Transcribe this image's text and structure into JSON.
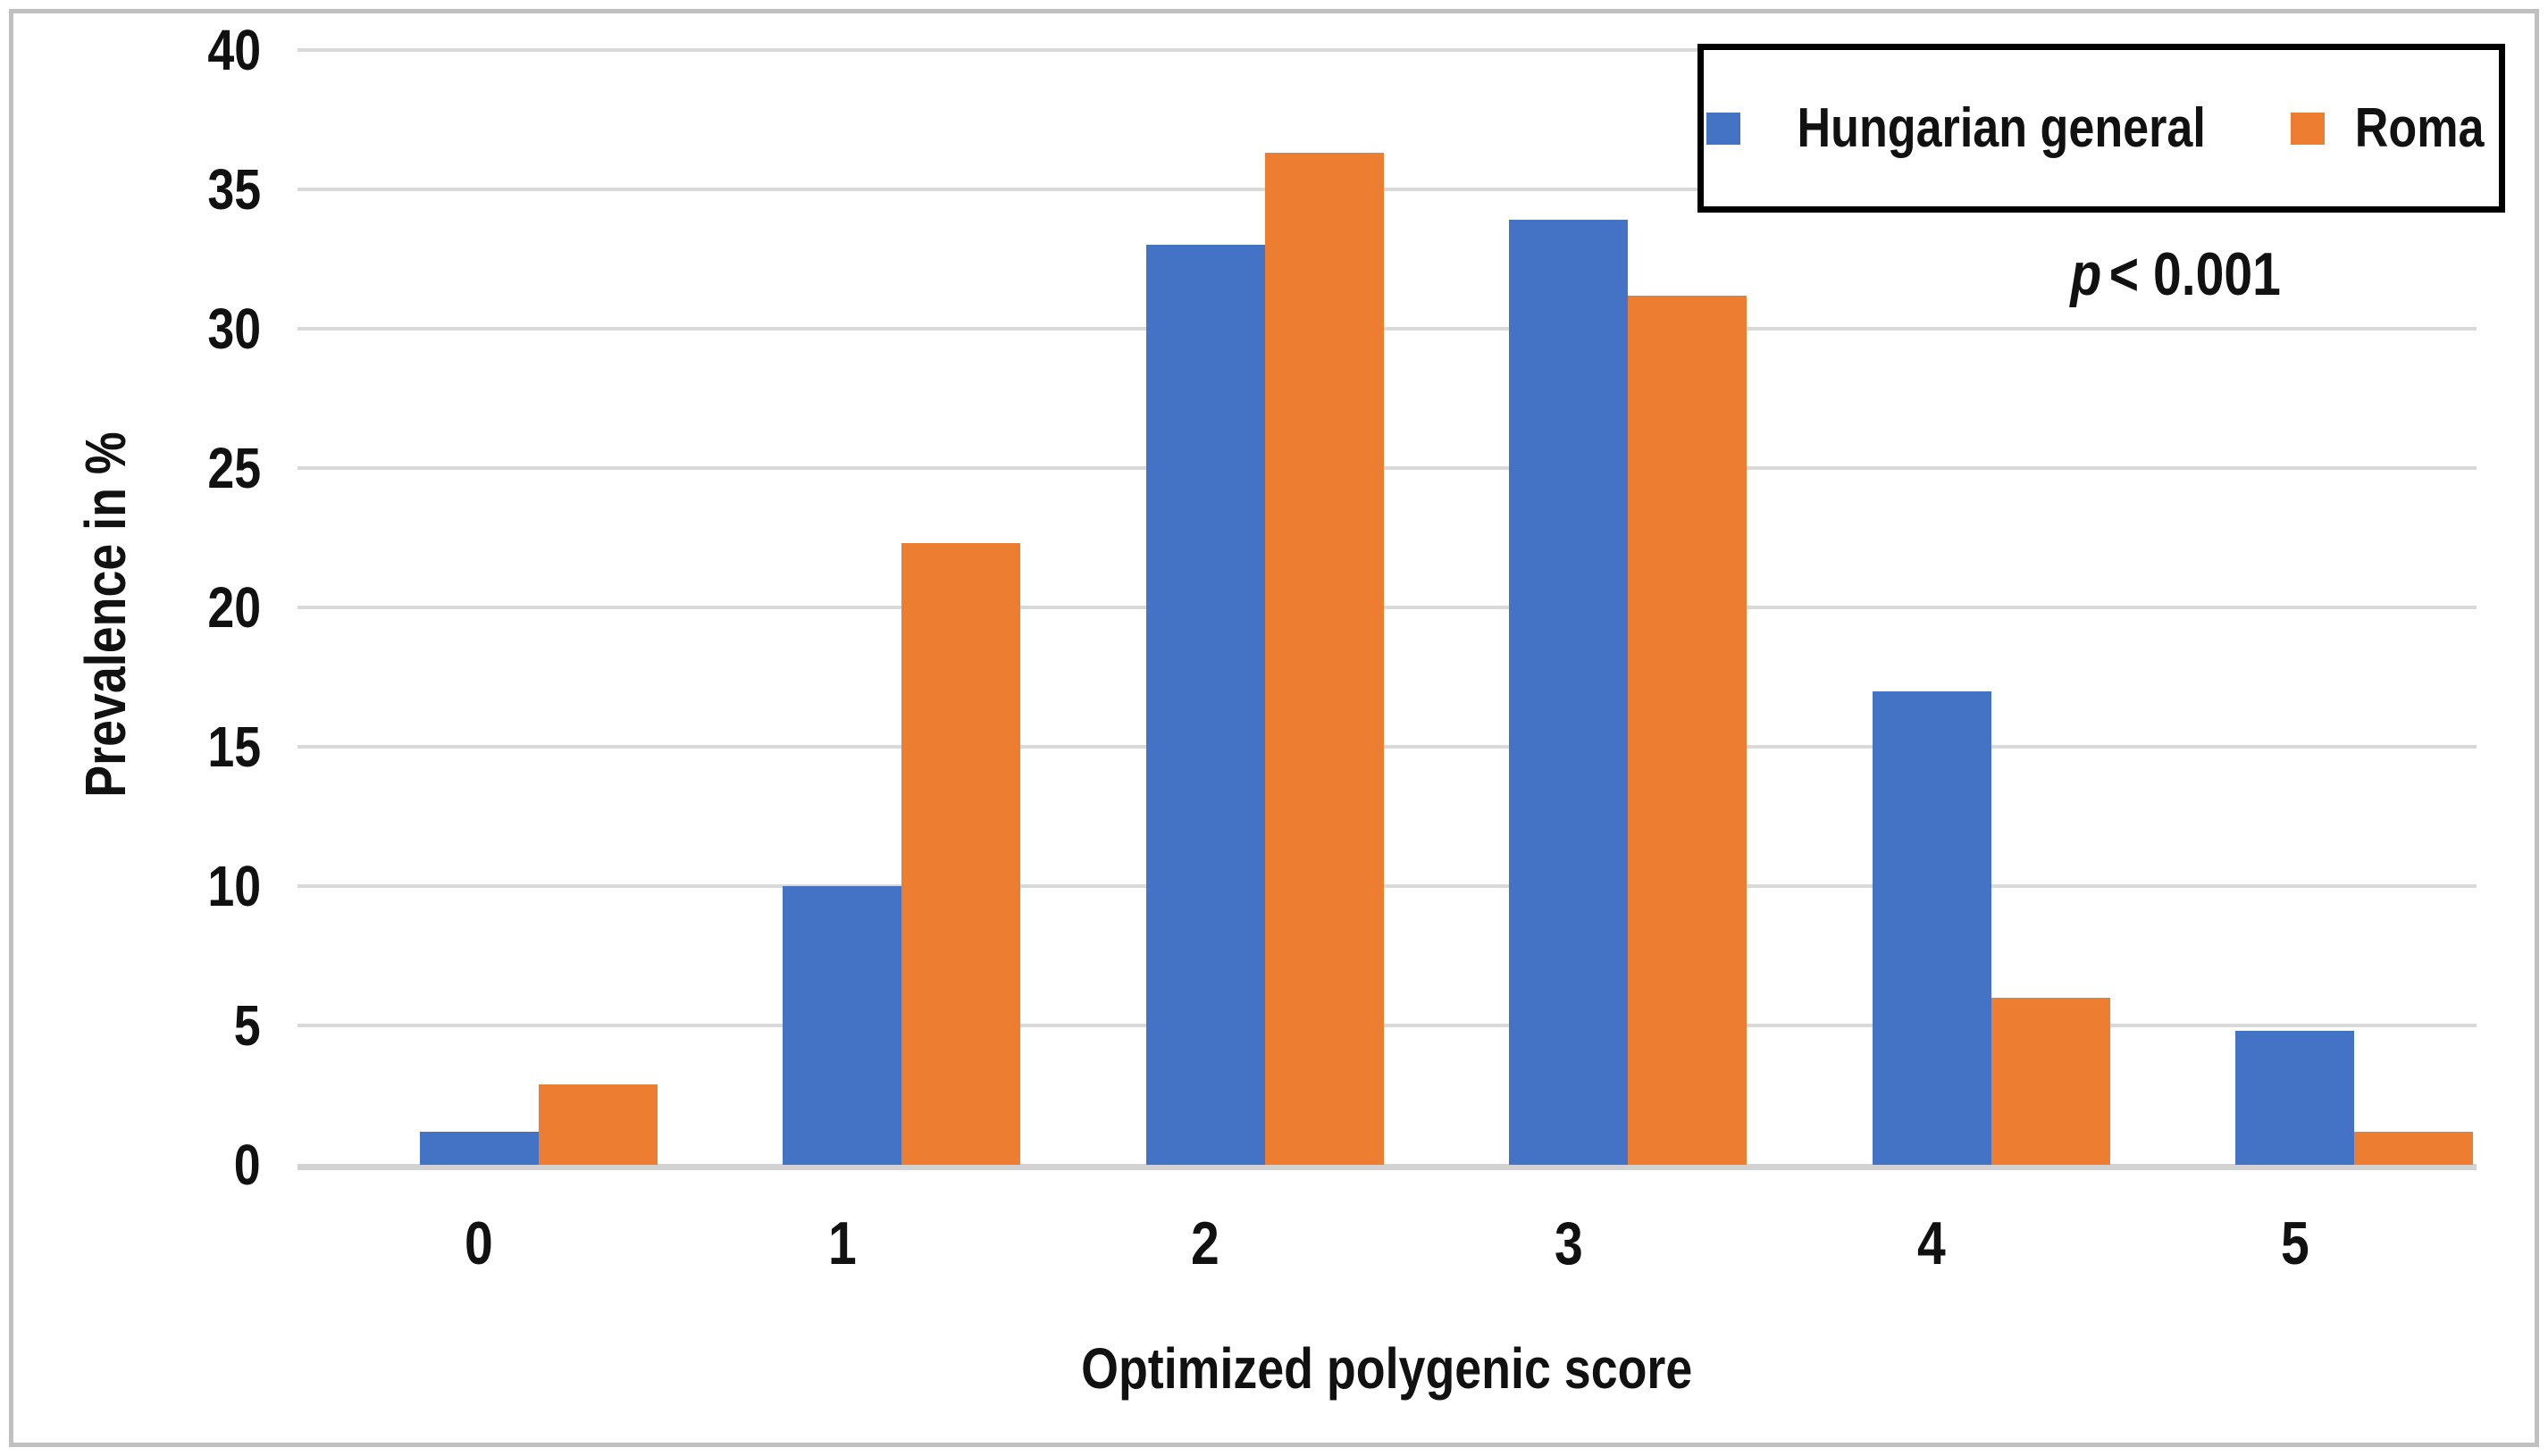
{
  "figure": {
    "background": "#ffffff",
    "border_color": "#c0c0c0"
  },
  "chart_data": {
    "type": "bar",
    "title": "",
    "categories": [
      "0",
      "1",
      "2",
      "3",
      "4",
      "5"
    ],
    "series": [
      {
        "name": "Hungarian general",
        "color": "#4472C4",
        "values": [
          1.2,
          10.0,
          33.0,
          33.9,
          17.0,
          4.8
        ]
      },
      {
        "name": "Roma",
        "color": "#ED7D31",
        "values": [
          2.9,
          22.3,
          36.3,
          31.2,
          6.0,
          1.2
        ]
      }
    ],
    "xlabel": "Optimized polygenic score",
    "ylabel": "Prevalence in %",
    "ylim": [
      0,
      40
    ],
    "y_tick_step": 5,
    "y_ticks": [
      "0",
      "5",
      "10",
      "15",
      "20",
      "25",
      "30",
      "35",
      "40"
    ],
    "grid": "horizontal",
    "gridline_color": "#d9d9d9",
    "axis_line_color": "#d2d2d2",
    "legend_position": "top-right",
    "annotation": {
      "p_symbol": "p",
      "p_rest": "< 0.001"
    }
  }
}
